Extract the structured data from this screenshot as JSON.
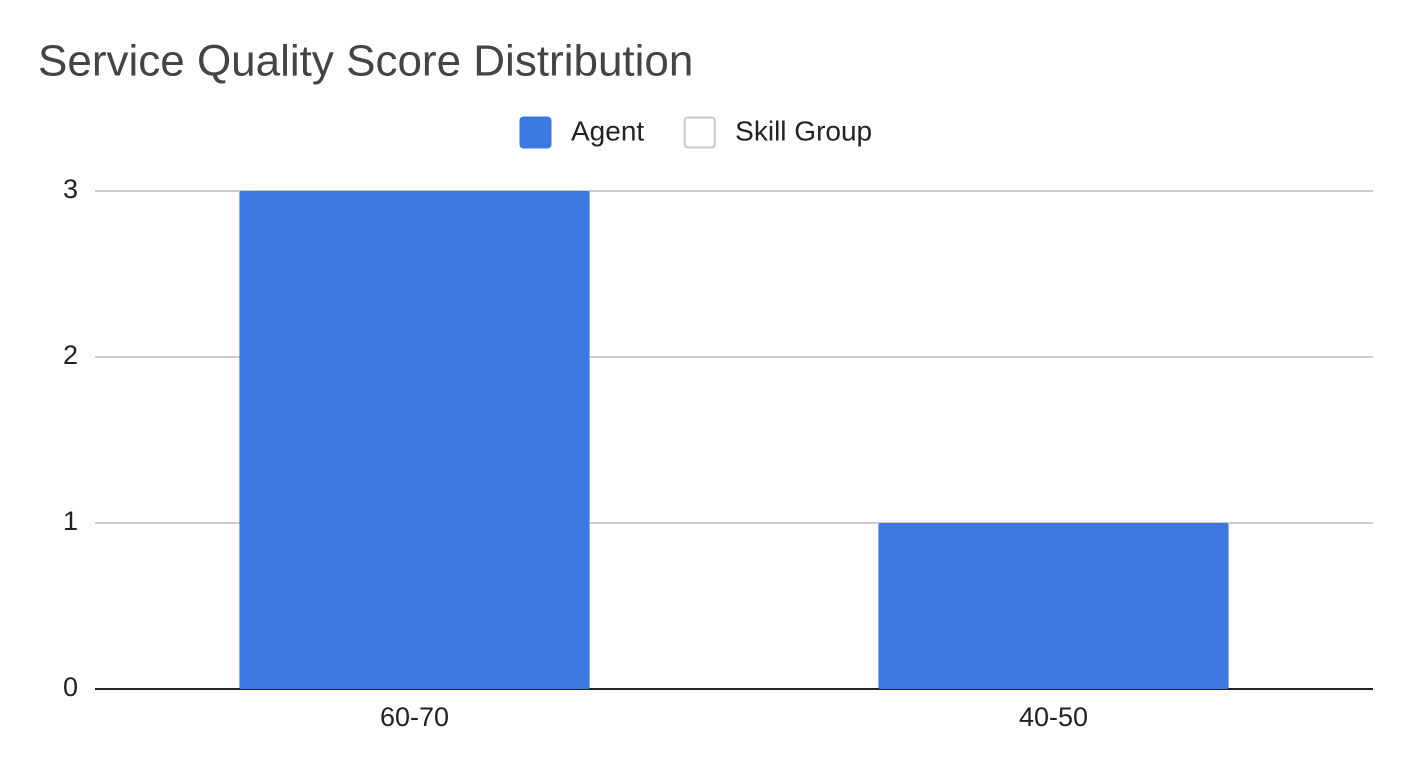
{
  "chart_data": {
    "type": "bar",
    "title": "Service Quality Score Distribution",
    "categories": [
      "60-70",
      "40-50"
    ],
    "series": [
      {
        "name": "Agent",
        "color": "#3b78e0",
        "values": [
          3,
          1
        ]
      },
      {
        "name": "Skill Group",
        "color": "#ffffff",
        "values": [
          null,
          null
        ]
      }
    ],
    "ylim": [
      0,
      3
    ],
    "yticks": [
      0,
      1,
      2,
      3
    ],
    "grid": true,
    "legend": "top"
  }
}
